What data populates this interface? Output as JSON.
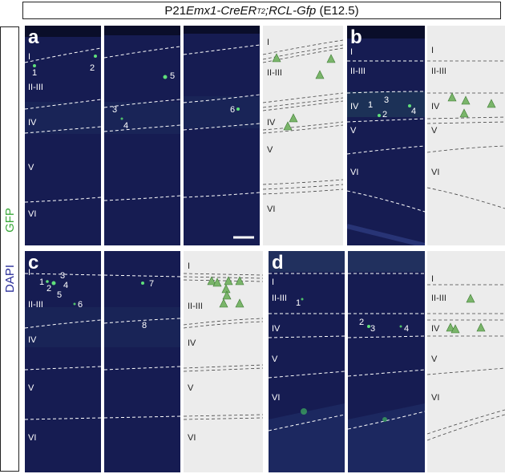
{
  "title": {
    "prefix": "P21 ",
    "gene": "Emx1-CreER",
    "superscript": "T2",
    "sep": ";",
    "reporter": "RCL-Gfp",
    "suffix": " (E12.5)"
  },
  "side_labels": {
    "gfp": "GFP",
    "dapi": "DAPI"
  },
  "colors": {
    "gfp": "#3aa83a",
    "dapi": "#2a2e9a",
    "tissue": "#141a4a",
    "schematic_bg": "#ececec",
    "triangle": "#7ab56a"
  },
  "panels": {
    "a": {
      "label": "a",
      "layers": [
        "I",
        "II-III",
        "IV",
        "V",
        "VI"
      ],
      "cells": [
        "1",
        "2",
        "5",
        "3",
        "4",
        "6"
      ]
    },
    "b": {
      "label": "b",
      "layers": [
        "I",
        "II-III",
        "IV",
        "V",
        "VI"
      ],
      "cells": [
        "1",
        "3",
        "2",
        "4"
      ]
    },
    "c": {
      "label": "c",
      "layers": [
        "I",
        "II-III",
        "IV",
        "V",
        "VI"
      ],
      "cells": [
        "3",
        "1",
        "4",
        "2",
        "5",
        "6",
        "7",
        "8"
      ]
    },
    "d": {
      "label": "d",
      "layers": [
        "I",
        "II-III",
        "IV",
        "V",
        "VI"
      ],
      "cells": [
        "1",
        "2",
        "3",
        "4"
      ]
    }
  },
  "scale_bar": "scale-bar"
}
